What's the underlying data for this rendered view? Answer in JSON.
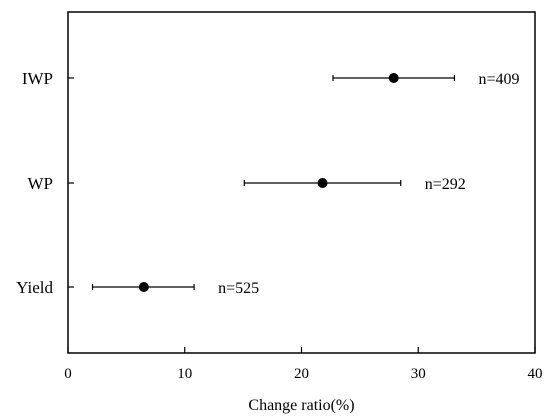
{
  "chart_data": {
    "type": "scatter",
    "title": "",
    "xlabel": "Change ratio(%)",
    "ylabel": "",
    "xlim": [
      0,
      40
    ],
    "x_ticks": [
      "0",
      "10",
      "20",
      "30",
      "40"
    ],
    "grid": false,
    "categories": [
      "IWP",
      "WP",
      "Yield"
    ],
    "points": [
      {
        "category": "IWP",
        "mean": 27.9,
        "ci_low": 22.7,
        "ci_high": 33.1,
        "n_label": "n=409"
      },
      {
        "category": "WP",
        "mean": 21.8,
        "ci_low": 15.1,
        "ci_high": 28.5,
        "n_label": "n=292"
      },
      {
        "category": "Yield",
        "mean": 6.5,
        "ci_low": 2.1,
        "ci_high": 10.8,
        "n_label": "n=525"
      }
    ]
  }
}
